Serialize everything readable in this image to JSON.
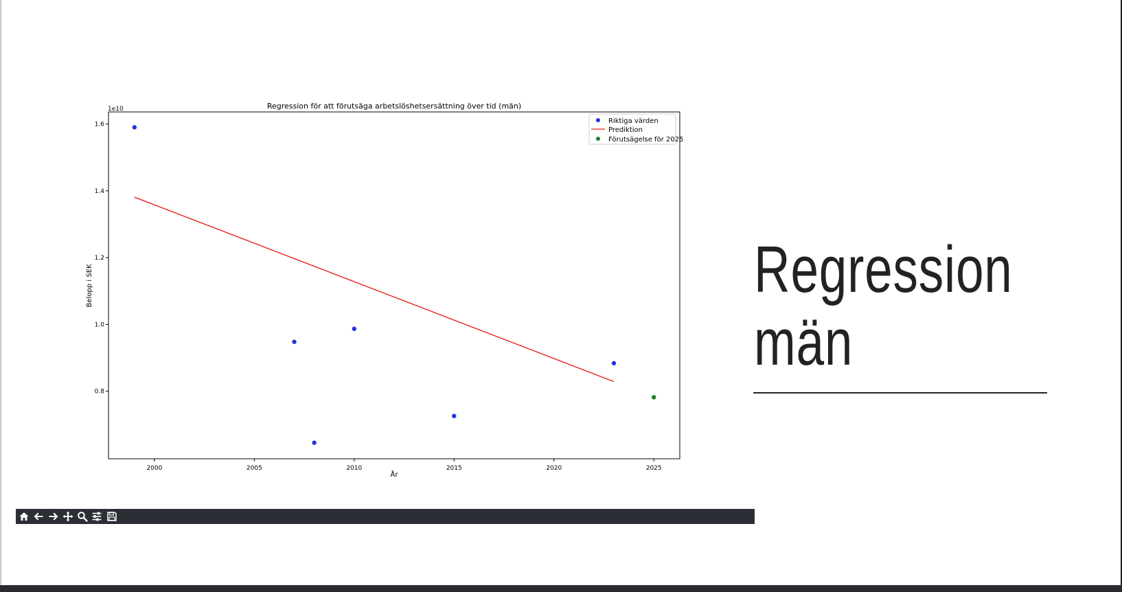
{
  "slide": {
    "title_line1": "Regression",
    "title_line2": "män"
  },
  "toolbar": {
    "buttons": [
      {
        "icon": "home-icon"
      },
      {
        "icon": "back-arrow-icon"
      },
      {
        "icon": "forward-arrow-icon"
      },
      {
        "icon": "pan-move-icon"
      },
      {
        "icon": "zoom-magnifier-icon"
      },
      {
        "icon": "configure-subplots-icon"
      },
      {
        "icon": "save-floppy-icon"
      }
    ],
    "icon_color": "#ffffff"
  },
  "chart_data": {
    "type": "scatter",
    "title": "Regression för att förutsäga arbetslöshetsersättning över tid (män)",
    "xlabel": "År",
    "ylabel": "Belopp i SEK",
    "y_offset_label": "1e10",
    "xlim": [
      1997.7,
      2026.3
    ],
    "ylim": [
      0.598,
      1.636
    ],
    "x_ticks": [
      2000,
      2005,
      2010,
      2015,
      2020,
      2025
    ],
    "y_ticks": [
      0.8,
      1.0,
      1.2,
      1.4,
      1.6
    ],
    "y_tick_labels": [
      "0.8",
      "1.0",
      "1.2",
      "1.4",
      "1.6"
    ],
    "legend_position": "upper-right",
    "series": [
      {
        "name": "Riktiga värden",
        "kind": "scatter",
        "color": "#1f35e0",
        "points": [
          [
            1999,
            1.59
          ],
          [
            2007,
            0.948
          ],
          [
            2008,
            0.646
          ],
          [
            2010,
            0.987
          ],
          [
            2015,
            0.726
          ],
          [
            2023,
            0.884
          ]
        ]
      },
      {
        "name": "Prediktion",
        "kind": "line",
        "color": "#e8241c",
        "points": [
          [
            1999,
            1.381
          ],
          [
            2023,
            0.829
          ]
        ]
      },
      {
        "name": "Förutsägelse för 2025",
        "kind": "scatter",
        "color": "#1b7f2a",
        "points": [
          [
            2025,
            0.782
          ]
        ]
      }
    ]
  }
}
